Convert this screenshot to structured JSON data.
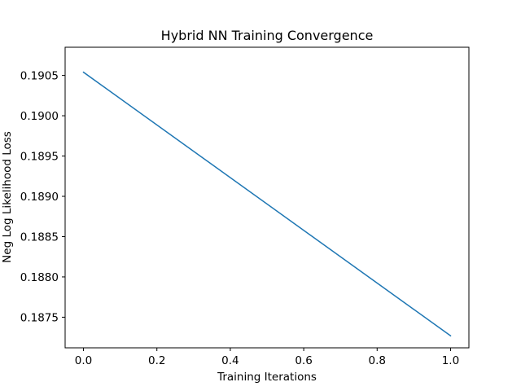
{
  "chart_data": {
    "type": "line",
    "title": "Hybrid NN Training Convergence",
    "xlabel": "Training Iterations",
    "ylabel": "Neg Log Likelihood Loss",
    "xlim": [
      -0.05,
      1.05
    ],
    "ylim": [
      0.18712,
      0.19085
    ],
    "x_ticks": [
      0.0,
      0.2,
      0.4,
      0.6,
      0.8,
      1.0
    ],
    "x_tick_labels": [
      "0.0",
      "0.2",
      "0.4",
      "0.6",
      "0.8",
      "1.0"
    ],
    "y_ticks": [
      0.1875,
      0.188,
      0.1885,
      0.189,
      0.1895,
      0.19,
      0.1905
    ],
    "y_tick_labels": [
      "0.1875",
      "0.1880",
      "0.1885",
      "0.1890",
      "0.1895",
      "0.1900",
      "0.1905"
    ],
    "grid": false,
    "series": [
      {
        "x": [
          0.0,
          1.0
        ],
        "y": [
          0.19054,
          0.18727
        ],
        "color": "#1f77b4"
      }
    ]
  }
}
